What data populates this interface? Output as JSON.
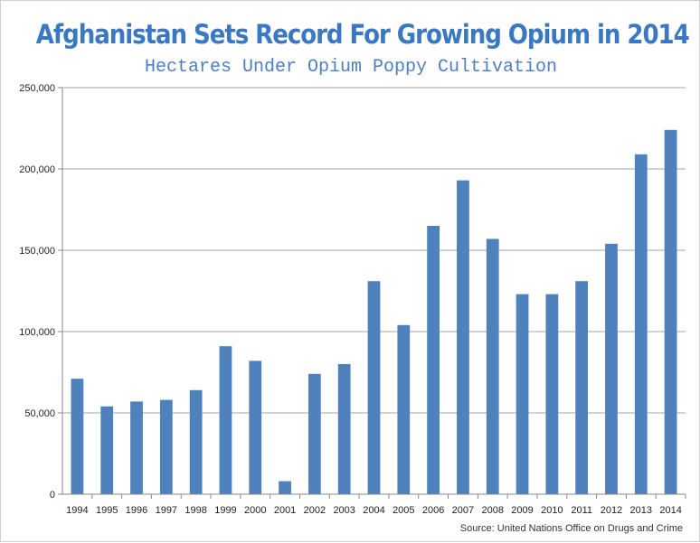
{
  "title": "Afghanistan Sets Record For Growing Opium in 2014",
  "subtitle": "Hectares Under Opium Poppy Cultivation",
  "source": "Source: United Nations Office on Drugs and Crime",
  "colors": {
    "title": "#3b78c4",
    "subtitle": "#4f7fc2",
    "bar": "#4f81bd",
    "grid": "#a6a6a6"
  },
  "chart_data": {
    "type": "bar",
    "title": "Afghanistan Sets Record For Growing Opium in 2014",
    "subtitle": "Hectares Under Opium Poppy Cultivation",
    "xlabel": "",
    "ylabel": "",
    "ylim": [
      0,
      250000
    ],
    "grid": true,
    "legend": "none",
    "y_ticks": [
      0,
      50000,
      100000,
      150000,
      200000,
      250000
    ],
    "y_tick_labels": [
      "0",
      "50,000",
      "100,000",
      "150,000",
      "200,000",
      "250,000"
    ],
    "categories": [
      "1994",
      "1995",
      "1996",
      "1997",
      "1998",
      "1999",
      "2000",
      "2001",
      "2002",
      "2003",
      "2004",
      "2005",
      "2006",
      "2007",
      "2008",
      "2009",
      "2010",
      "2011",
      "2012",
      "2013",
      "2014"
    ],
    "values": [
      71000,
      54000,
      57000,
      58000,
      64000,
      91000,
      82000,
      8000,
      74000,
      80000,
      131000,
      104000,
      165000,
      193000,
      157000,
      123000,
      123000,
      131000,
      154000,
      209000,
      224000
    ]
  }
}
